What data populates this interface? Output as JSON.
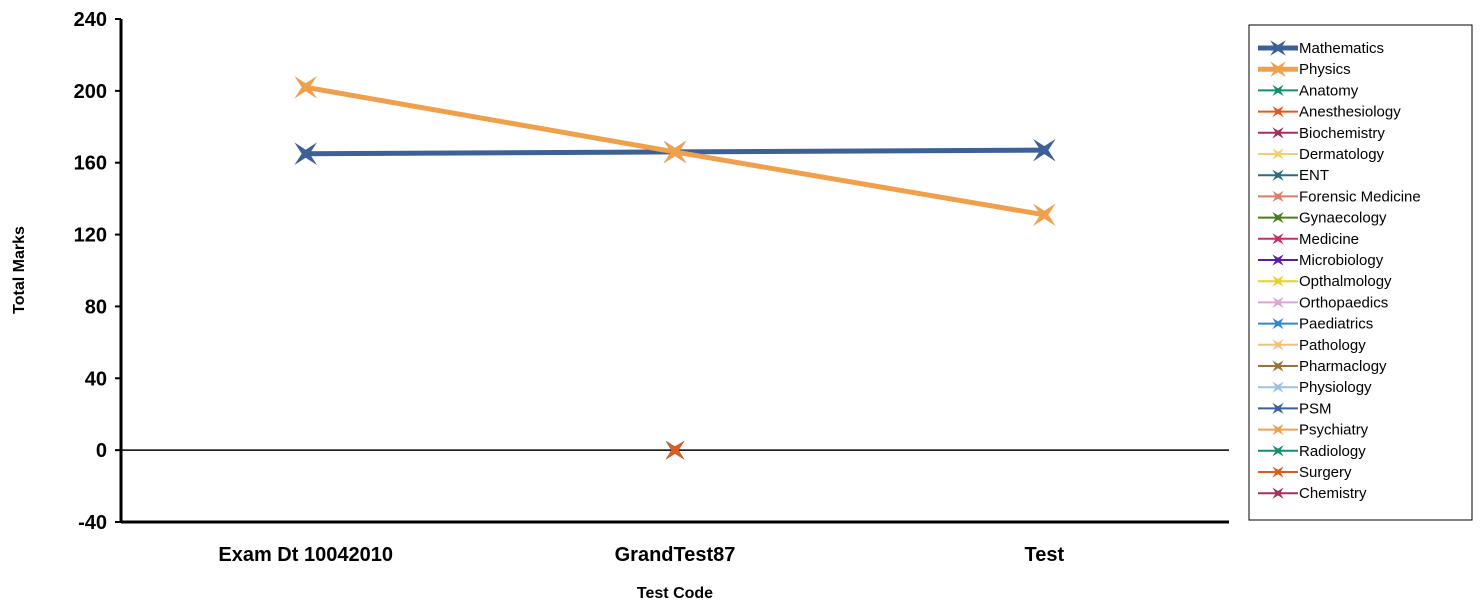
{
  "chart_data": {
    "type": "line",
    "title": "",
    "xlabel": "Test Code",
    "ylabel": "Total Marks",
    "categories": [
      "Exam Dt 10042010",
      "GrandTest87",
      "Test"
    ],
    "ylim": [
      -40,
      240
    ],
    "yticks": [
      -40,
      0,
      40,
      80,
      120,
      160,
      200,
      240
    ],
    "grid": false,
    "legend_position": "right",
    "series": [
      {
        "name": "Mathematics",
        "color": "#3d6196",
        "values": [
          165,
          166,
          167
        ],
        "emphasis": true
      },
      {
        "name": "Physics",
        "color": "#f0a04b",
        "values": [
          202,
          166,
          131
        ],
        "emphasis": true
      },
      {
        "name": "Anatomy",
        "color": "#138f6b",
        "values": [
          null,
          0,
          null
        ]
      },
      {
        "name": "Anesthesiology",
        "color": "#e05a1e",
        "values": [
          null,
          0,
          null
        ]
      },
      {
        "name": "Biochemistry",
        "color": "#a3305f",
        "values": [
          null,
          0,
          null
        ]
      },
      {
        "name": "Dermatology",
        "color": "#f5cf6e",
        "values": [
          null,
          0,
          null
        ]
      },
      {
        "name": "ENT",
        "color": "#2a6e7f",
        "values": [
          null,
          0,
          null
        ]
      },
      {
        "name": "Forensic Medicine",
        "color": "#e07a6b",
        "values": [
          null,
          0,
          null
        ]
      },
      {
        "name": "Gynaecology",
        "color": "#4c7a1d",
        "values": [
          null,
          0,
          null
        ]
      },
      {
        "name": "Medicine",
        "color": "#cc2c65",
        "values": [
          null,
          0,
          null
        ]
      },
      {
        "name": "Microbiology",
        "color": "#5c1ea1",
        "values": [
          null,
          0,
          null
        ]
      },
      {
        "name": "Opthalmology",
        "color": "#e6d22a",
        "values": [
          null,
          0,
          null
        ]
      },
      {
        "name": "Orthopaedics",
        "color": "#dba6cf",
        "values": [
          null,
          0,
          null
        ]
      },
      {
        "name": "Paediatrics",
        "color": "#2f86d4",
        "values": [
          null,
          0,
          null
        ]
      },
      {
        "name": "Pathology",
        "color": "#f2c07e",
        "values": [
          null,
          0,
          null
        ]
      },
      {
        "name": "Pharmaclogy",
        "color": "#9c7331",
        "values": [
          null,
          0,
          null
        ]
      },
      {
        "name": "Physiology",
        "color": "#9fc0e3",
        "values": [
          null,
          0,
          null
        ]
      },
      {
        "name": "PSM",
        "color": "#3d6196",
        "values": [
          null,
          0,
          null
        ]
      },
      {
        "name": "Psychiatry",
        "color": "#f0a04b",
        "values": [
          null,
          0,
          null
        ]
      },
      {
        "name": "Radiology",
        "color": "#138f6b",
        "values": [
          null,
          0,
          null
        ]
      },
      {
        "name": "Surgery",
        "color": "#e05a1e",
        "values": [
          null,
          0,
          null
        ]
      },
      {
        "name": "Chemistry",
        "color": "#a3305f",
        "values": [
          null,
          null,
          131
        ]
      }
    ]
  }
}
